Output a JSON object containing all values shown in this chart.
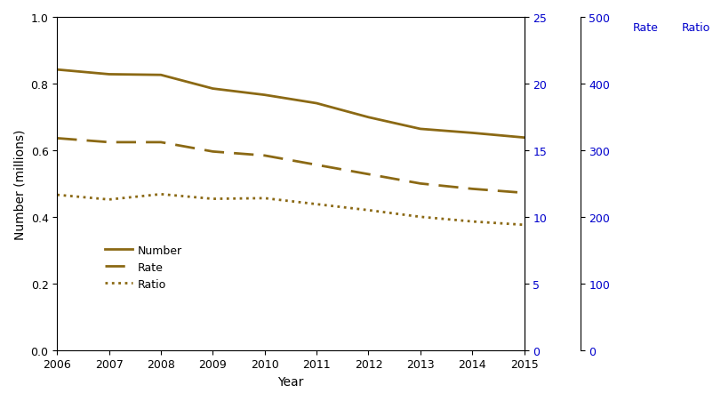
{
  "years": [
    2006,
    2007,
    2008,
    2009,
    2010,
    2011,
    2012,
    2013,
    2014,
    2015
  ],
  "number_millions": [
    0.842,
    0.828,
    0.826,
    0.785,
    0.766,
    0.741,
    0.699,
    0.664,
    0.652,
    0.638
  ],
  "rate": [
    15.9,
    15.6,
    15.6,
    14.9,
    14.6,
    13.9,
    13.2,
    12.5,
    12.1,
    11.8
  ],
  "ratio": [
    233,
    226,
    234,
    227,
    228,
    219,
    210,
    200,
    193,
    188
  ],
  "number_color": "#8B6914",
  "rate_color": "#8B6914",
  "ratio_color": "#8B6914",
  "left_ylabel": "Number (millions)",
  "xlabel": "Year",
  "rate_label": "Rate",
  "ratio_label": "Ratio",
  "right_axis1_label": "Rate",
  "right_axis2_label": "Ratio",
  "right_color": "#0000CC",
  "ylim_left": [
    0.0,
    1.0
  ],
  "ylim_rate": [
    0,
    25
  ],
  "ylim_ratio": [
    0,
    500
  ],
  "left_yticks": [
    0.0,
    0.2,
    0.4,
    0.6,
    0.8,
    1.0
  ],
  "rate_yticks": [
    0,
    5,
    10,
    15,
    20,
    25
  ],
  "ratio_yticks": [
    0,
    100,
    200,
    300,
    400,
    500
  ],
  "legend_labels": [
    "Number",
    "Rate",
    "Ratio"
  ],
  "background_color": "#ffffff",
  "line_width": 2.0
}
